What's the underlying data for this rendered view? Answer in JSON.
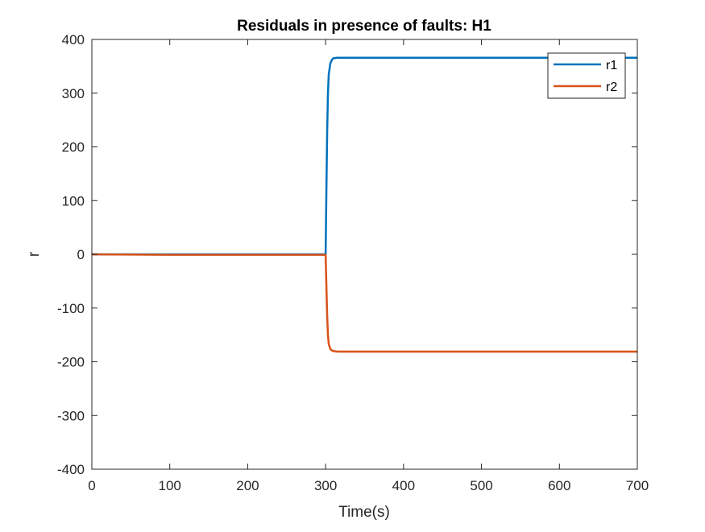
{
  "chart_data": {
    "type": "line",
    "title": "Residuals in presence of faults: H1",
    "xlabel": "Time(s)",
    "ylabel": "r",
    "xlim": [
      0,
      700
    ],
    "ylim": [
      -400,
      400
    ],
    "xticks": [
      0,
      100,
      200,
      300,
      400,
      500,
      600,
      700
    ],
    "yticks": [
      -400,
      -300,
      -200,
      -100,
      0,
      100,
      200,
      300,
      400
    ],
    "xtick_labels": [
      "0",
      "100",
      "200",
      "300",
      "400",
      "500",
      "600",
      "700"
    ],
    "ytick_labels": [
      "-400",
      "-300",
      "-200",
      "-100",
      "0",
      "100",
      "200",
      "300",
      "400"
    ],
    "grid": false,
    "legend_position": "top-right",
    "series": [
      {
        "name": "r1",
        "color": "#0072BD",
        "x": [
          0,
          100,
          200,
          299,
          300,
          301,
          302,
          303,
          304,
          306,
          308,
          310,
          315,
          320,
          400,
          500,
          600,
          700
        ],
        "y": [
          0,
          0,
          0,
          0,
          0,
          120,
          230,
          300,
          335,
          355,
          362,
          365,
          366,
          366,
          366,
          366,
          366,
          366
        ]
      },
      {
        "name": "r2",
        "color": "#D95319",
        "x": [
          0,
          100,
          200,
          299,
          300,
          301,
          302,
          303,
          304,
          306,
          308,
          310,
          315,
          320,
          400,
          500,
          600,
          700
        ],
        "y": [
          0,
          -1,
          -1,
          -1,
          -1,
          -60,
          -115,
          -150,
          -167,
          -176,
          -179,
          -180,
          -181,
          -181,
          -181,
          -181,
          -181,
          -181
        ]
      }
    ]
  }
}
